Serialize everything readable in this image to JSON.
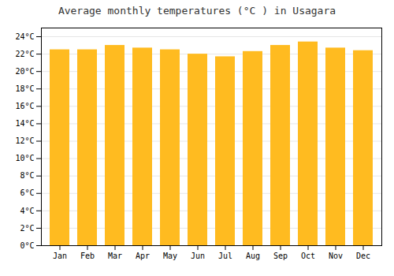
{
  "chart_data": {
    "type": "bar",
    "title": "Average monthly temperatures (°C ) in Usagara",
    "categories": [
      "Jan",
      "Feb",
      "Mar",
      "Apr",
      "May",
      "Jun",
      "Jul",
      "Aug",
      "Sep",
      "Oct",
      "Nov",
      "Dec"
    ],
    "values": [
      22.5,
      22.5,
      23.0,
      22.7,
      22.5,
      22.0,
      21.7,
      22.3,
      23.0,
      23.4,
      22.7,
      22.4
    ],
    "color": "#FFBB20",
    "ylim": [
      0,
      25
    ],
    "yticks": [
      {
        "value": 0,
        "label": "0°C"
      },
      {
        "value": 2,
        "label": "2°C"
      },
      {
        "value": 4,
        "label": "4°C"
      },
      {
        "value": 6,
        "label": "6°C"
      },
      {
        "value": 8,
        "label": "8°C"
      },
      {
        "value": 10,
        "label": "10°C"
      },
      {
        "value": 12,
        "label": "12°C"
      },
      {
        "value": 14,
        "label": "14°C"
      },
      {
        "value": 16,
        "label": "16°C"
      },
      {
        "value": 18,
        "label": "18°C"
      },
      {
        "value": 20,
        "label": "20°C"
      },
      {
        "value": 22,
        "label": "22°C"
      },
      {
        "value": 24,
        "label": "24°C"
      }
    ],
    "grid": true
  }
}
